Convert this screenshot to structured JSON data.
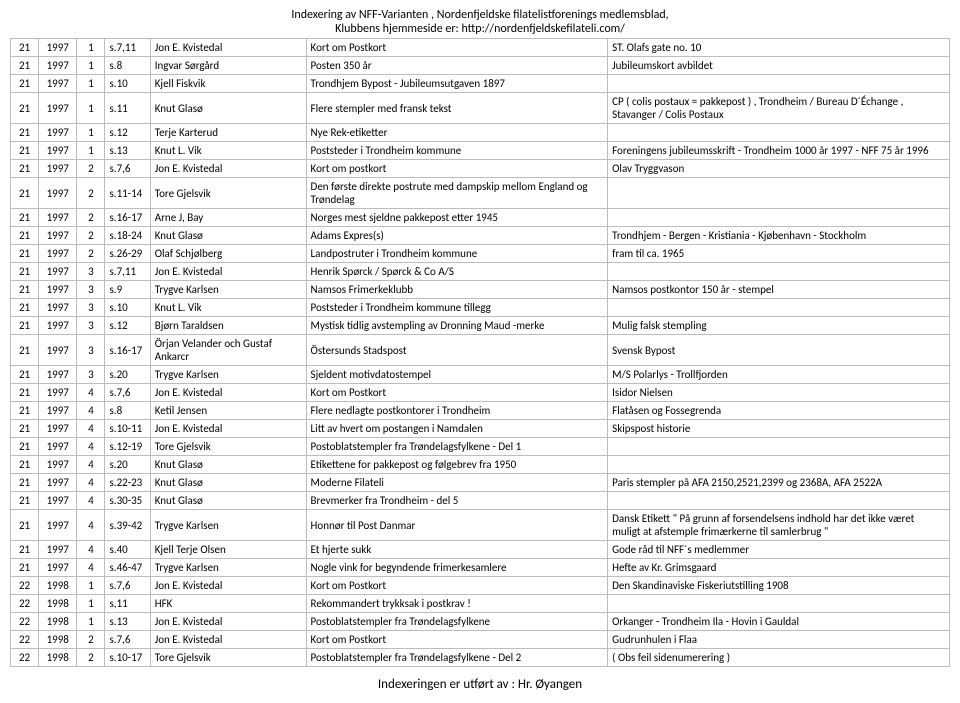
{
  "header": {
    "line1": "Indexering av  NFF-Varianten , Nordenfjeldske filatelistforenings medlemsblad,",
    "line2": "Klubbens hjemmeside er:   http://nordenfjeldskefilateli.com/"
  },
  "footer": "Indexeringen er utført av :  Hr. Øyangen",
  "rows": [
    {
      "c1": "21",
      "c2": "1997",
      "c3": "1",
      "c4": "s.7,11",
      "c5": "Jon E. Kvistedal",
      "c6": "Kort om Postkort",
      "c7": "ST. Olafs gate no. 10"
    },
    {
      "c1": "21",
      "c2": "1997",
      "c3": "1",
      "c4": "s.8",
      "c5": "Ingvar Sørgård",
      "c6": "Posten 350 år",
      "c7": "Jubileumskort avbildet"
    },
    {
      "c1": "21",
      "c2": "1997",
      "c3": "1",
      "c4": "s.10",
      "c5": "Kjell Fiskvik",
      "c6": "Trondhjem Bypost - Jubileumsutgaven 1897",
      "c7": ""
    },
    {
      "c1": "21",
      "c2": "1997",
      "c3": "1",
      "c4": "s.11",
      "c5": "Knut Glasø",
      "c6": "Flere stempler med fransk tekst",
      "c7": "CP ( colis postaux = pakkepost ) , Trondheim / Bureau D´Échange , Stavanger / Colis Postaux"
    },
    {
      "c1": "21",
      "c2": "1997",
      "c3": "1",
      "c4": "s.12",
      "c5": "Terje Karterud",
      "c6": "Nye Rek-etiketter",
      "c7": ""
    },
    {
      "c1": "21",
      "c2": "1997",
      "c3": "1",
      "c4": "s.13",
      "c5": "Knut L. Vik",
      "c6": "Poststeder i Trondheim kommune",
      "c7": "Foreningens jubileumsskrift - Trondheim 1000 år 1997 - NFF 75 år 1996"
    },
    {
      "c1": "21",
      "c2": "1997",
      "c3": "2",
      "c4": "s.7,6",
      "c5": "Jon E. Kvistedal",
      "c6": "Kort om postkort",
      "c7": "Olav Tryggvason"
    },
    {
      "c1": "21",
      "c2": "1997",
      "c3": "2",
      "c4": "s.11-14",
      "c5": "Tore Gjelsvik",
      "c6": "Den første direkte postrute med dampskip mellom England og Trøndelag",
      "c7": ""
    },
    {
      "c1": "21",
      "c2": "1997",
      "c3": "2",
      "c4": "s.16-17",
      "c5": "Arne J, Bay",
      "c6": "Norges mest sjeldne pakkepost etter 1945",
      "c7": ""
    },
    {
      "c1": "21",
      "c2": "1997",
      "c3": "2",
      "c4": "s.18-24",
      "c5": "Knut Glasø",
      "c6": "Adams Expres(s)",
      "c7": "Trondhjem - Bergen - Kristiania - Kjøbenhavn - Stockholm"
    },
    {
      "c1": "21",
      "c2": "1997",
      "c3": "2",
      "c4": "s.26-29",
      "c5": "Olaf Schjølberg",
      "c6": "Landpostruter i Trondheim kommune",
      "c7": "fram til ca. 1965"
    },
    {
      "c1": "21",
      "c2": "1997",
      "c3": "3",
      "c4": "s.7,11",
      "c5": "Jon E. Kvistedal",
      "c6": "Henrik Spørck / Spørck & Co A/S",
      "c7": ""
    },
    {
      "c1": "21",
      "c2": "1997",
      "c3": "3",
      "c4": "s.9",
      "c5": "Trygve Karlsen",
      "c6": "Namsos  Frimerkeklubb",
      "c7": "Namsos postkontor 150 år - stempel"
    },
    {
      "c1": "21",
      "c2": "1997",
      "c3": "3",
      "c4": "s.10",
      "c5": "Knut L. Vik",
      "c6": "Poststeder i Trondheim kommune   tillegg",
      "c7": ""
    },
    {
      "c1": "21",
      "c2": "1997",
      "c3": "3",
      "c4": "s.12",
      "c5": "Bjørn Taraldsen",
      "c6": "Mystisk tidlig avstempling av Dronning Maud -merke",
      "c7": "Mulig falsk stempling"
    },
    {
      "c1": "21",
      "c2": "1997",
      "c3": "3",
      "c4": "s.16-17",
      "c5": "Örjan Velander  och  Gustaf Ankarcr",
      "c6": "Östersunds Stadspost",
      "c7": "Svensk Bypost"
    },
    {
      "c1": "21",
      "c2": "1997",
      "c3": "3",
      "c4": "s.20",
      "c5": "Trygve Karlsen",
      "c6": "Sjeldent motivdatostempel",
      "c7": "M/S Polarlys - Trollfjorden"
    },
    {
      "c1": "21",
      "c2": "1997",
      "c3": "4",
      "c4": "s.7,6",
      "c5": "Jon E. Kvistedal",
      "c6": "Kort om Postkort",
      "c7": "Isidor Nielsen"
    },
    {
      "c1": "21",
      "c2": "1997",
      "c3": "4",
      "c4": "s.8",
      "c5": "Ketil Jensen",
      "c6": "Flere nedlagte postkontorer i Trondheim",
      "c7": "Flatåsen og Fossegrenda"
    },
    {
      "c1": "21",
      "c2": "1997",
      "c3": "4",
      "c4": "s.10-11",
      "c5": "Jon E. Kvistedal",
      "c6": "Litt av hvert om postangen i Namdalen",
      "c7": "Skipspost historie"
    },
    {
      "c1": "21",
      "c2": "1997",
      "c3": "4",
      "c4": "s.12-19",
      "c5": "Tore Gjelsvik",
      "c6": "Postoblatstempler fra Trøndelagsfylkene - Del 1",
      "c7": ""
    },
    {
      "c1": "21",
      "c2": "1997",
      "c3": "4",
      "c4": "s.20",
      "c5": "Knut Glasø",
      "c6": "Etikettene for pakkepost og følgebrev fra 1950",
      "c7": ""
    },
    {
      "c1": "21",
      "c2": "1997",
      "c3": "4",
      "c4": "s.22-23",
      "c5": "Knut Glasø",
      "c6": "Moderne Filateli",
      "c7": "Paris stempler på AFA 2150,2521,2399 og 2368A, AFA 2522A"
    },
    {
      "c1": "21",
      "c2": "1997",
      "c3": "4",
      "c4": "s.30-35",
      "c5": "Knut Glasø",
      "c6": "Brevmerker fra Trondheim - del 5",
      "c7": ""
    },
    {
      "c1": "21",
      "c2": "1997",
      "c3": "4",
      "c4": "s.39-42",
      "c5": "Trygve Karlsen",
      "c6": "Honnør til Post Danmar",
      "c7": "Dansk Etikett \" På grunn af forsendelsens indhold har det ikke været muligt at afstemple frimærkerne til samlerbrug \""
    },
    {
      "c1": "21",
      "c2": "1997",
      "c3": "4",
      "c4": "s.40",
      "c5": "Kjell Terje Olsen",
      "c6": "Et hjerte sukk",
      "c7": "Gode råd til NFF´s medlemmer"
    },
    {
      "c1": "21",
      "c2": "1997",
      "c3": "4",
      "c4": "s.46-47",
      "c5": "Trygve Karlsen",
      "c6": "Nogle vink for begyndende frimerkesamlere",
      "c7": "Hefte av Kr. Grimsgaard"
    },
    {
      "c1": "22",
      "c2": "1998",
      "c3": "1",
      "c4": "s.7,6",
      "c5": "Jon E. Kvistedal",
      "c6": "Kort om Postkort",
      "c7": "Den Skandinaviske Fiskeriutstilling 1908"
    },
    {
      "c1": "22",
      "c2": "1998",
      "c3": "1",
      "c4": "s,11",
      "c5": "HFK",
      "c6": "Rekommandert trykksak i postkrav !",
      "c7": ""
    },
    {
      "c1": "22",
      "c2": "1998",
      "c3": "1",
      "c4": "s.13",
      "c5": "Jon E. Kvistedal",
      "c6": "Postoblatstempler fra Trøndelagsfylkene",
      "c7": "Orkanger - Trondheim Ila - Hovin i Gauldal"
    },
    {
      "c1": "22",
      "c2": "1998",
      "c3": "2",
      "c4": "s.7,6",
      "c5": "Jon E. Kvistedal",
      "c6": "Kort om Postkort",
      "c7": "Gudrunhulen i Flaa"
    },
    {
      "c1": "22",
      "c2": "1998",
      "c3": "2",
      "c4": "s.10-17",
      "c5": "Tore Gjelsvik",
      "c6": "Postoblatstempler fra Trøndelagsfylkene - Del 2",
      "c7": "( Obs feil sidenumerering )"
    }
  ]
}
